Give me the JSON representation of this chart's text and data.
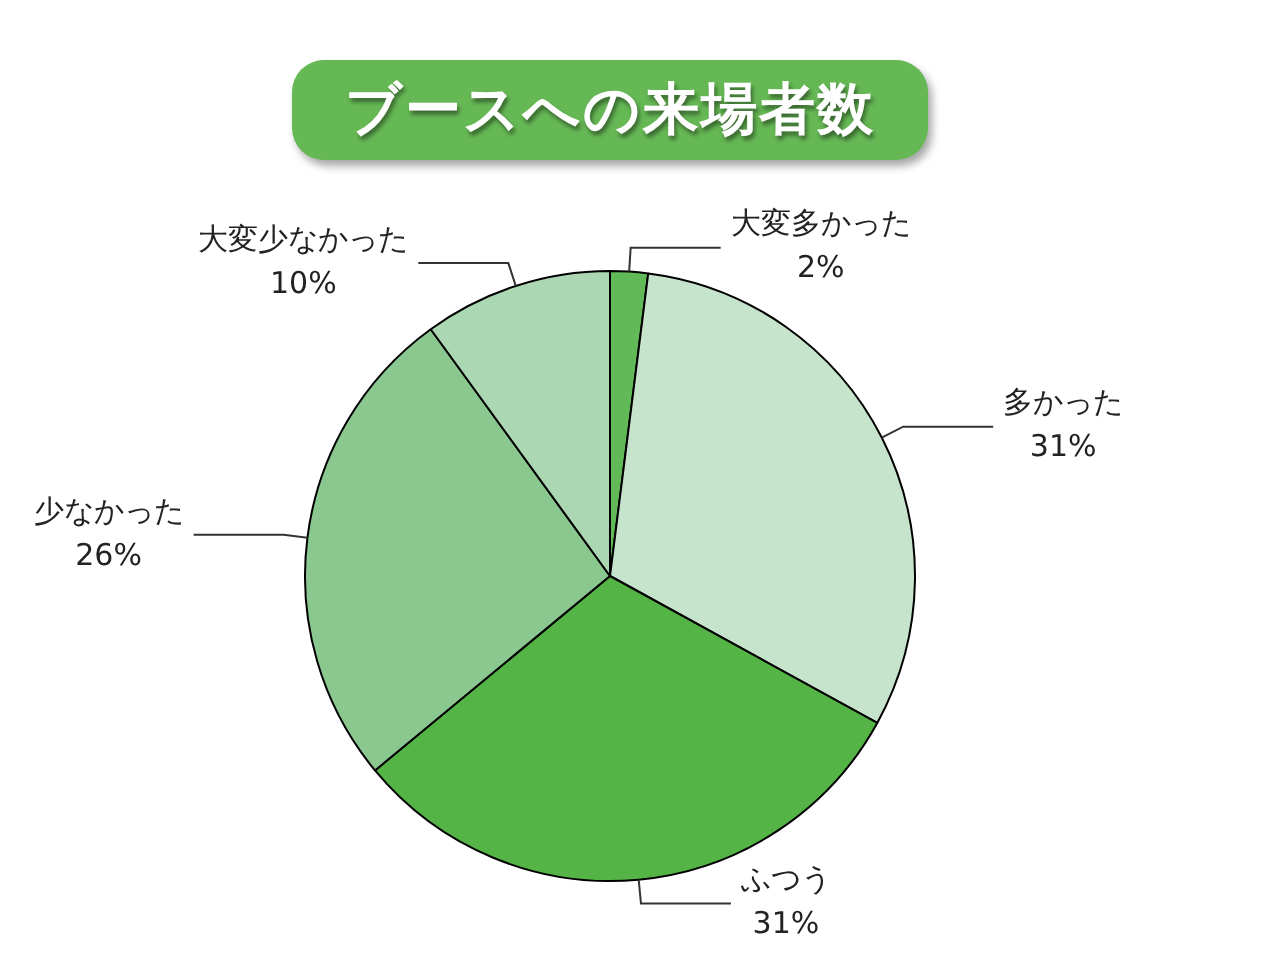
{
  "chart_data": {
    "type": "pie",
    "title": "ブースへの来場者数",
    "categories": [
      "大変多かった",
      "多かった",
      "ふつう",
      "少なかった",
      "大変少なかった"
    ],
    "values": [
      2,
      31,
      31,
      26,
      10
    ],
    "colors": [
      "#62b958",
      "#c6e3cb",
      "#54b445",
      "#8bc88f",
      "#acd7b3"
    ],
    "value_labels": [
      "2%",
      "31%",
      "31%",
      "26%",
      "10%"
    ]
  }
}
